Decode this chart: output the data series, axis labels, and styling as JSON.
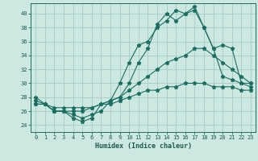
{
  "title": "",
  "xlabel": "Humidex (Indice chaleur)",
  "ylabel": "",
  "bg_color": "#cce8e0",
  "grid_color": "#aacfc8",
  "line_color": "#1a6e62",
  "xlim": [
    -0.5,
    23.5
  ],
  "ylim": [
    23.0,
    41.5
  ],
  "yticks": [
    24,
    26,
    28,
    30,
    32,
    34,
    36,
    38,
    40
  ],
  "xticks": [
    0,
    1,
    2,
    3,
    4,
    5,
    6,
    7,
    8,
    9,
    10,
    11,
    12,
    13,
    14,
    15,
    16,
    17,
    18,
    19,
    20,
    21,
    22,
    23
  ],
  "line1_x": [
    0,
    1,
    2,
    3,
    4,
    5,
    6,
    7,
    8,
    9,
    10,
    11,
    12,
    13,
    14,
    15,
    16,
    17,
    18,
    19,
    20,
    21,
    22,
    23
  ],
  "line1_y": [
    28,
    27,
    26,
    26,
    25,
    24.5,
    25,
    27,
    27.5,
    30,
    33,
    35.5,
    36,
    38,
    39,
    40.5,
    40,
    40.5,
    38,
    35,
    35.5,
    35,
    30,
    30
  ],
  "line2_x": [
    0,
    1,
    2,
    3,
    4,
    5,
    6,
    7,
    8,
    9,
    10,
    11,
    12,
    13,
    14,
    15,
    16,
    17,
    18,
    19,
    20,
    21,
    22,
    23
  ],
  "line2_y": [
    27.5,
    27,
    26,
    26,
    25.5,
    25,
    25.5,
    26,
    27.5,
    28,
    30,
    33,
    35,
    38.5,
    40,
    39,
    40,
    41,
    38,
    35,
    31,
    30.5,
    30,
    29.5
  ],
  "line3_x": [
    0,
    1,
    2,
    3,
    4,
    5,
    6,
    7,
    8,
    9,
    10,
    11,
    12,
    13,
    14,
    15,
    16,
    17,
    18,
    19,
    20,
    21,
    22,
    23
  ],
  "line3_y": [
    27,
    27,
    26,
    26,
    26,
    26,
    26.5,
    27,
    27.5,
    28,
    29,
    30,
    31,
    32,
    33,
    33.5,
    34,
    35,
    35,
    34,
    33,
    32,
    31,
    30
  ],
  "line4_x": [
    0,
    1,
    2,
    3,
    4,
    5,
    6,
    7,
    8,
    9,
    10,
    11,
    12,
    13,
    14,
    15,
    16,
    17,
    18,
    19,
    20,
    21,
    22,
    23
  ],
  "line4_y": [
    27,
    27,
    26.5,
    26.5,
    26.5,
    26.5,
    26.5,
    27,
    27,
    27.5,
    28,
    28.5,
    29,
    29,
    29.5,
    29.5,
    30,
    30,
    30,
    29.5,
    29.5,
    29.5,
    29,
    29
  ]
}
